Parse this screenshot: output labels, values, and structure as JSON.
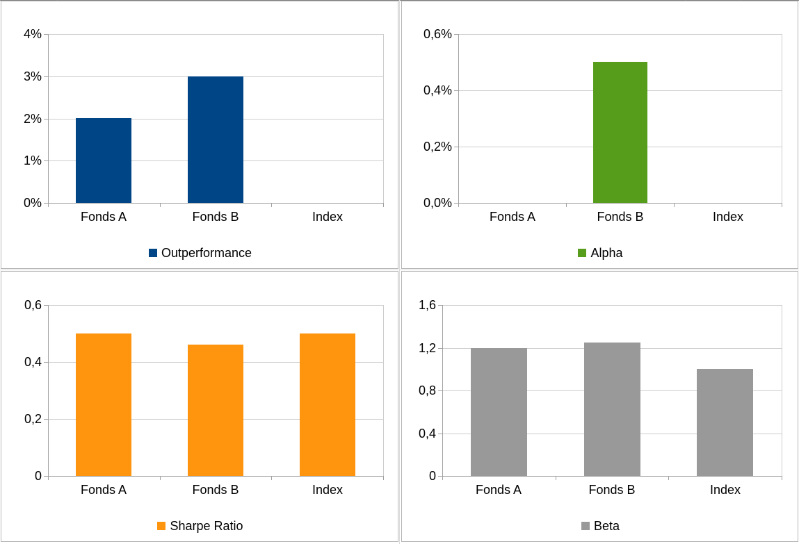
{
  "app": {
    "kind": "spreadsheet-embedded-charts",
    "background": "#ffffff",
    "panel_border_color": "#b5b5b5",
    "grid_color": "#cdcdcd",
    "axis_color": "#a0a0a0",
    "sheet_line_color": "#808080",
    "cell_line_color": "#dcdcdc",
    "text_color": "#000000"
  },
  "chart_data": [
    {
      "id": "outperformance",
      "type": "bar",
      "title": "",
      "legend": "Outperformance",
      "legend_position": "bottom",
      "color": "#004586",
      "categories": [
        "Fonds A",
        "Fonds B",
        "Index"
      ],
      "values": [
        2,
        3,
        0
      ],
      "unit": "percent",
      "ylim": [
        0,
        4
      ],
      "ytick_labels": [
        "0%",
        "1%",
        "2%",
        "3%",
        "4%"
      ],
      "grid": true
    },
    {
      "id": "alpha",
      "type": "bar",
      "title": "",
      "legend": "Alpha",
      "legend_position": "bottom",
      "color": "#579D1C",
      "categories": [
        "Fonds A",
        "Fonds B",
        "Index"
      ],
      "values": [
        0,
        0.5,
        0
      ],
      "unit": "percent",
      "ylim": [
        0,
        0.6
      ],
      "ytick_labels": [
        "0,0%",
        "0,2%",
        "0,4%",
        "0,6%"
      ],
      "grid": true
    },
    {
      "id": "sharpe-ratio",
      "type": "bar",
      "title": "",
      "legend": "Sharpe Ratio",
      "legend_position": "bottom",
      "color": "#FF950E",
      "categories": [
        "Fonds A",
        "Fonds B",
        "Index"
      ],
      "values": [
        0.5,
        0.46,
        0.5
      ],
      "unit": "ratio",
      "ylim": [
        0,
        0.6
      ],
      "ytick_labels": [
        "0",
        "0,2",
        "0,4",
        "0,6"
      ],
      "grid": true
    },
    {
      "id": "beta",
      "type": "bar",
      "title": "",
      "legend": "Beta",
      "legend_position": "bottom",
      "color": "#999999",
      "categories": [
        "Fonds A",
        "Fonds B",
        "Index"
      ],
      "values": [
        1.2,
        1.25,
        1.0
      ],
      "unit": "ratio",
      "ylim": [
        0,
        1.6
      ],
      "ytick_labels": [
        "0",
        "0,4",
        "0,8",
        "1,2",
        "1,6"
      ],
      "grid": true
    }
  ]
}
